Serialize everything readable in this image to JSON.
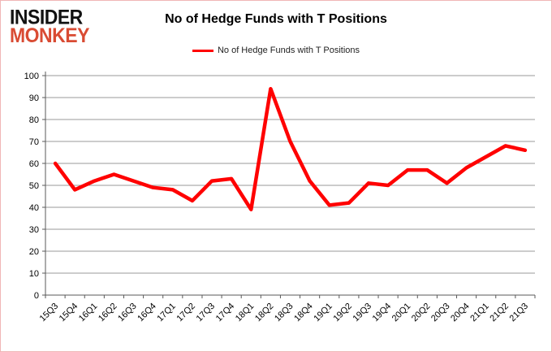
{
  "logo": {
    "line1": "INSIDER",
    "line2": "MONKEY",
    "accent_color": "#d94b33"
  },
  "header": {
    "title": "No of Hedge Funds with T Positions"
  },
  "legend": {
    "label": "No of Hedge Funds with T Positions",
    "line_color": "#ff0000"
  },
  "chart_data": {
    "type": "line",
    "title": "No of Hedge Funds with T Positions",
    "xlabel": "",
    "ylabel": "",
    "categories": [
      "15Q3",
      "15Q4",
      "16Q1",
      "16Q2",
      "16Q3",
      "16Q4",
      "17Q1",
      "17Q2",
      "17Q3",
      "17Q4",
      "18Q1",
      "18Q2",
      "18Q3",
      "18Q4",
      "19Q1",
      "19Q2",
      "19Q3",
      "19Q4",
      "20Q1",
      "20Q2",
      "20Q3",
      "20Q4",
      "21Q1",
      "21Q2",
      "21Q3"
    ],
    "series": [
      {
        "name": "No of Hedge Funds with T Positions",
        "color": "#ff0000",
        "values": [
          60,
          48,
          52,
          55,
          52,
          49,
          48,
          43,
          52,
          53,
          39,
          94,
          70,
          52,
          41,
          42,
          51,
          50,
          57,
          57,
          51,
          58,
          63,
          68,
          66
        ]
      }
    ],
    "ylim": [
      0,
      100
    ],
    "ytick_step": 10,
    "grid": true,
    "legend_position": "top",
    "gridline_color": "#9a9a9a",
    "axis_color": "#595959",
    "tick_label_color": "#000000"
  }
}
